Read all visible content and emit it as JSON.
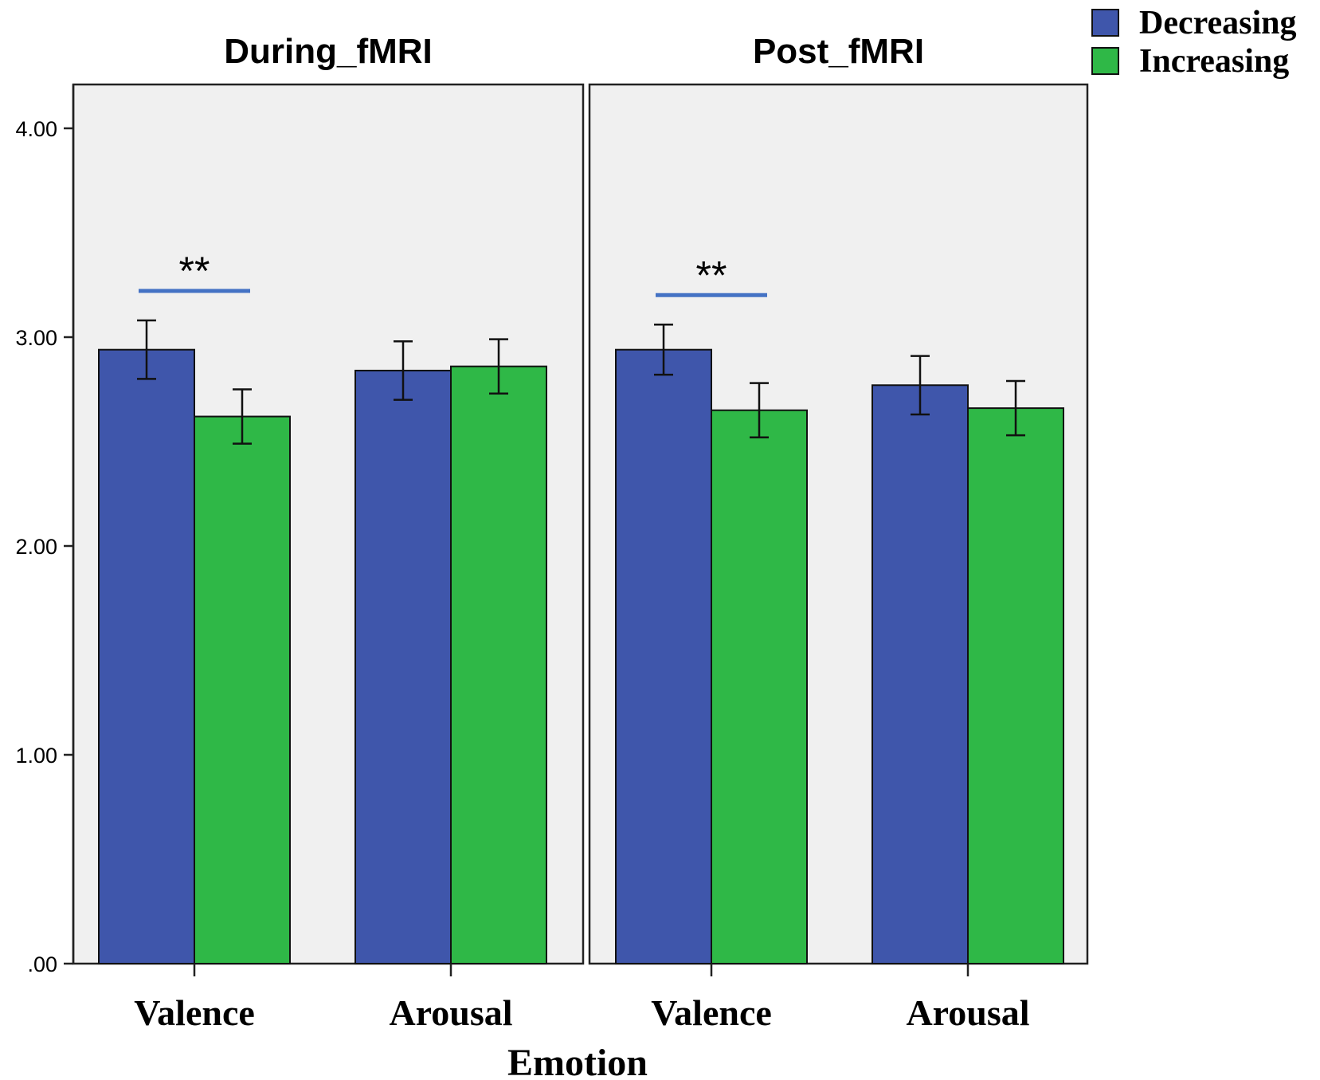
{
  "chart_data": {
    "type": "bar",
    "xlabel": "Emotion",
    "ylabel": "",
    "ylim": [
      0,
      4.2
    ],
    "yticks": [
      0,
      1,
      2,
      3,
      4
    ],
    "ytick_labels": [
      ".00",
      "1.00",
      "2.00",
      "3.00",
      "4.00"
    ],
    "legend_position": "top-right",
    "grid": false,
    "series_names": [
      "Decreasing",
      "Increasing"
    ],
    "colors": {
      "Decreasing": "#3f56ab",
      "Increasing": "#2fb847",
      "panel_bg": "#f0f0f0",
      "significance_bar": "#4472c4"
    },
    "panels": [
      {
        "title": "During_fMRI",
        "categories": [
          "Valence",
          "Arousal"
        ],
        "series": [
          {
            "name": "Decreasing",
            "values": [
              2.94,
              2.84
            ],
            "errors": [
              0.14,
              0.14
            ]
          },
          {
            "name": "Increasing",
            "values": [
              2.62,
              2.86
            ],
            "errors": [
              0.13,
              0.13
            ]
          }
        ],
        "annotations": [
          {
            "text": "**",
            "category": "Valence"
          }
        ]
      },
      {
        "title": "Post_fMRI",
        "categories": [
          "Valence",
          "Arousal"
        ],
        "series": [
          {
            "name": "Decreasing",
            "values": [
              2.94,
              2.77
            ],
            "errors": [
              0.12,
              0.14
            ]
          },
          {
            "name": "Increasing",
            "values": [
              2.65,
              2.66
            ],
            "errors": [
              0.13,
              0.13
            ]
          }
        ],
        "annotations": [
          {
            "text": "**",
            "category": "Valence"
          }
        ]
      }
    ]
  }
}
